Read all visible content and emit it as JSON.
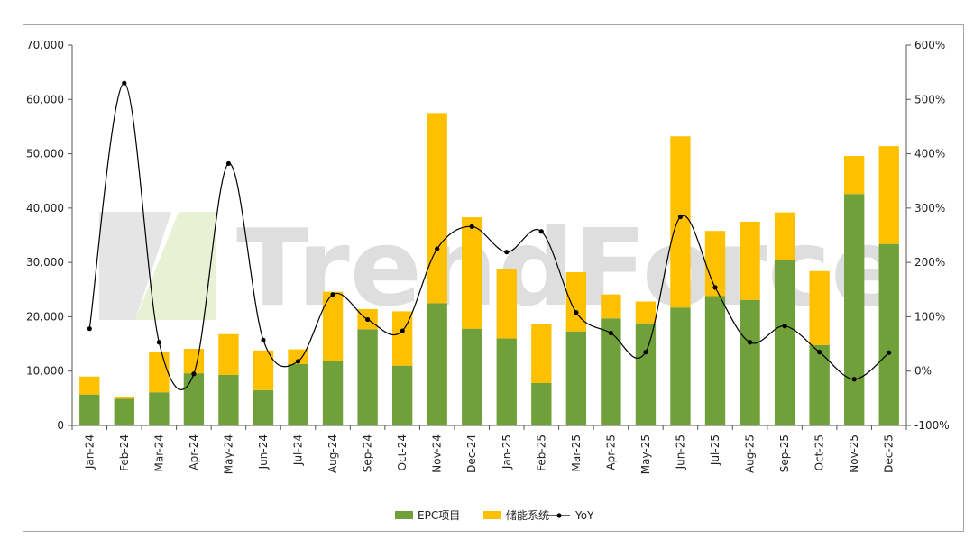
{
  "chart_data": {
    "type": "bar",
    "stacked": true,
    "categories": [
      "Jan-24",
      "Feb-24",
      "Mar-24",
      "Apr-24",
      "May-24",
      "Jun-24",
      "Jul-24",
      "Aug-24",
      "Sep-24",
      "Oct-24",
      "Nov-24",
      "Dec-24",
      "Jan-25",
      "Feb-25",
      "Mar-25",
      "Apr-25",
      "May-25",
      "Jun-25",
      "Jul-25",
      "Aug-25",
      "Sep-25",
      "Oct-25",
      "Nov-25",
      "Dec-25"
    ],
    "series": [
      {
        "name": "EPC项目",
        "type": "bar",
        "axis": "left",
        "color": "#70a03a",
        "values": [
          5700,
          4900,
          6100,
          9600,
          9300,
          6500,
          11300,
          11800,
          17700,
          11000,
          22500,
          17800,
          16000,
          7800,
          17300,
          19700,
          18800,
          21700,
          23800,
          23100,
          30500,
          14800,
          42600,
          33400
        ]
      },
      {
        "name": "储能系统",
        "type": "bar",
        "axis": "left",
        "color": "#ffc000",
        "values": [
          3300,
          300,
          7500,
          4500,
          7500,
          7300,
          2700,
          12800,
          3700,
          10000,
          35000,
          20500,
          12700,
          10800,
          10900,
          4400,
          4000,
          31500,
          12000,
          14400,
          8700,
          13600,
          7000,
          18000
        ]
      },
      {
        "name": "YoY",
        "type": "line",
        "axis": "right",
        "color": "#000000",
        "values": [
          78,
          530,
          53,
          -5,
          382,
          57,
          18,
          141,
          95,
          74,
          225,
          266,
          219,
          257,
          108,
          70,
          35,
          284,
          154,
          53,
          83,
          35,
          -15,
          34
        ]
      }
    ],
    "y_left": {
      "min": 0,
      "max": 70000,
      "ticks": [
        "0",
        "10,000",
        "20,000",
        "30,000",
        "40,000",
        "50,000",
        "60,000",
        "70,000"
      ]
    },
    "y_right": {
      "min": -100,
      "max": 600,
      "ticks": [
        "-100%",
        "0%",
        "100%",
        "200%",
        "300%",
        "400%",
        "500%",
        "600%"
      ]
    },
    "legend_position": "bottom",
    "watermark": "TrendForce"
  }
}
